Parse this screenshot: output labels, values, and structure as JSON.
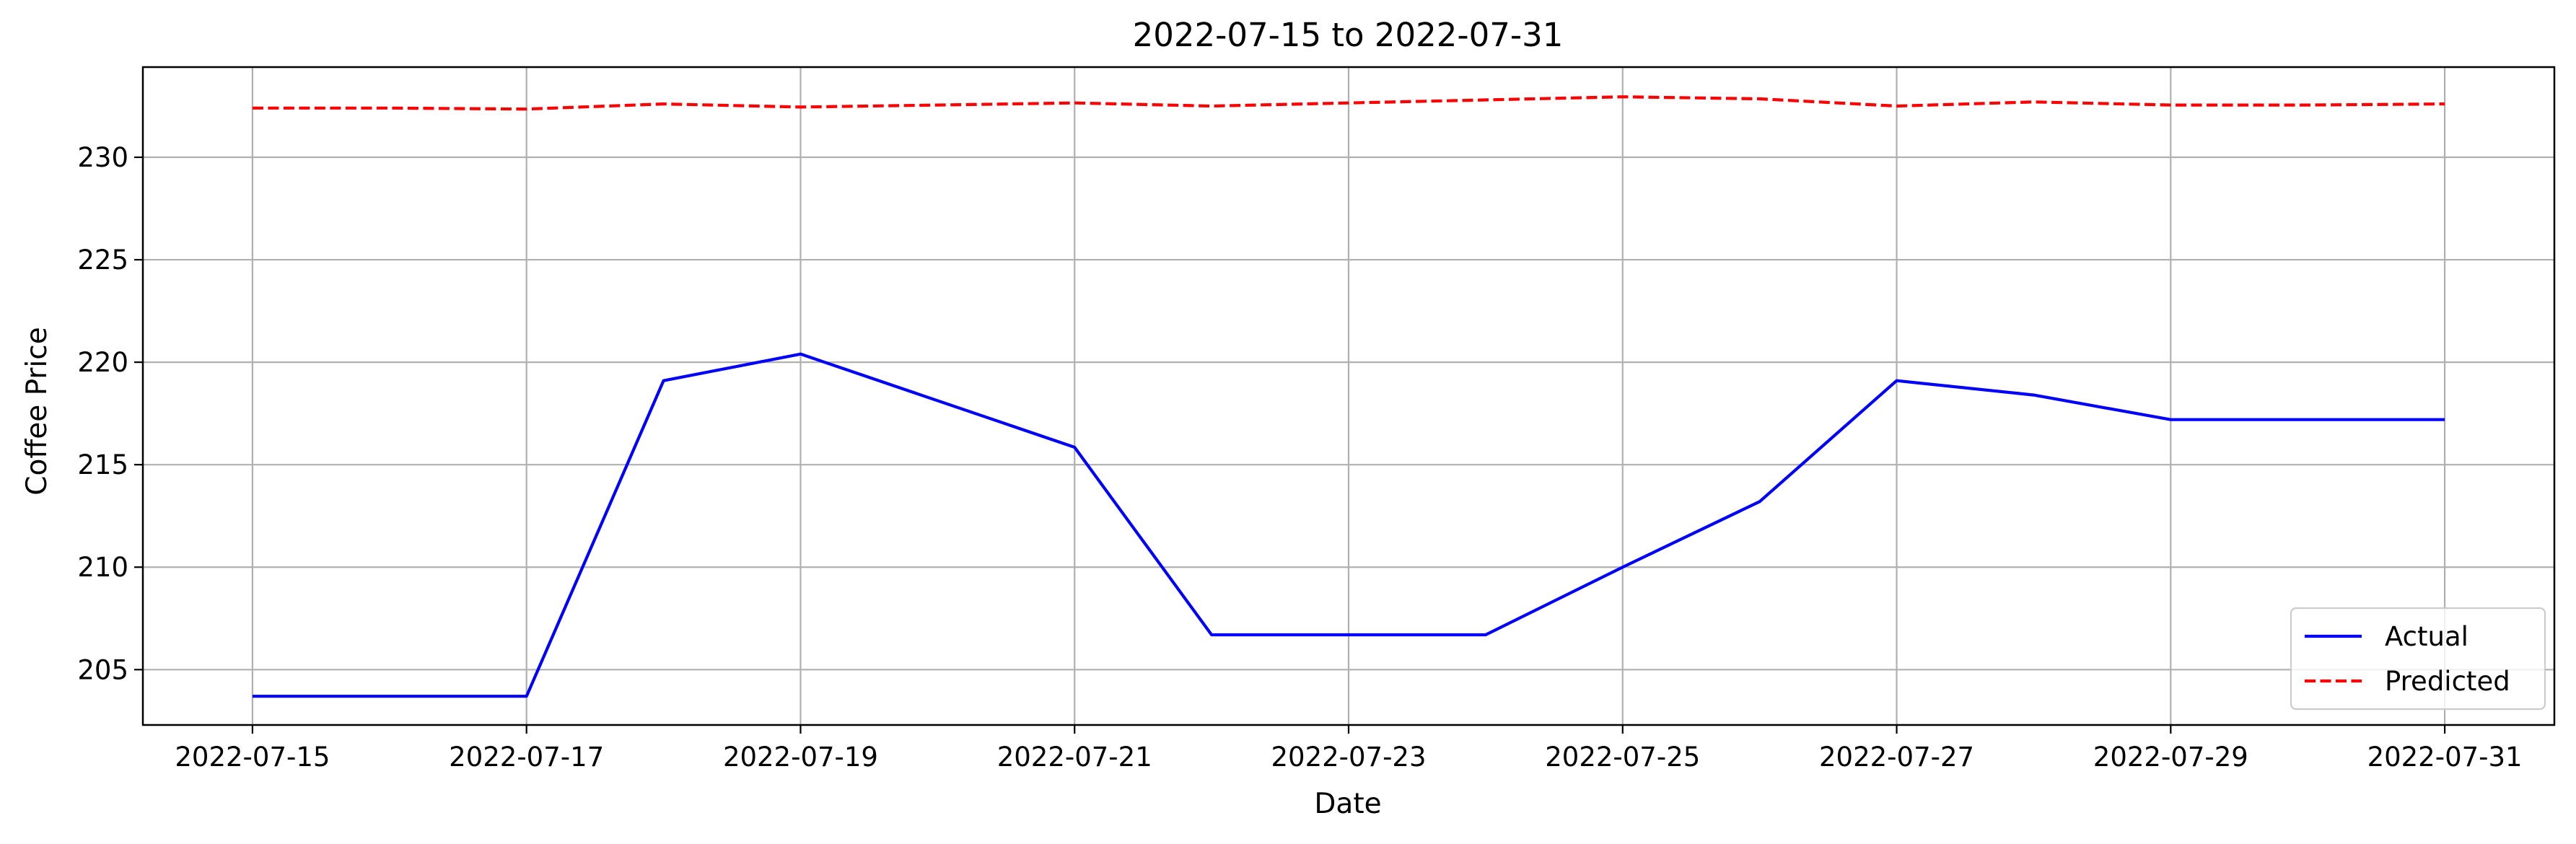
{
  "chart_data": {
    "type": "line",
    "title": "2022-07-15 to 2022-07-31",
    "xlabel": "Date",
    "ylabel": "Coffee Price",
    "x": [
      "2022-07-15",
      "2022-07-16",
      "2022-07-17",
      "2022-07-18",
      "2022-07-19",
      "2022-07-20",
      "2022-07-21",
      "2022-07-22",
      "2022-07-23",
      "2022-07-24",
      "2022-07-25",
      "2022-07-26",
      "2022-07-27",
      "2022-07-28",
      "2022-07-29",
      "2022-07-30",
      "2022-07-31"
    ],
    "x_ticks": [
      "2022-07-15",
      "2022-07-17",
      "2022-07-19",
      "2022-07-21",
      "2022-07-23",
      "2022-07-25",
      "2022-07-27",
      "2022-07-29",
      "2022-07-31"
    ],
    "y_ticks": [
      205,
      210,
      215,
      220,
      225,
      230
    ],
    "ylim": [
      202.3,
      234.4
    ],
    "grid": true,
    "legend_position": "bottom-right",
    "series": [
      {
        "name": "Actual",
        "color": "#0000ff",
        "style": "solid",
        "points": [
          {
            "x": "2022-07-15",
            "y": 203.7
          },
          {
            "x": "2022-07-17",
            "y": 203.7
          },
          {
            "x": "2022-07-18",
            "y": 219.1
          },
          {
            "x": "2022-07-19",
            "y": 220.4
          },
          {
            "x": "2022-07-21",
            "y": 215.85
          },
          {
            "x": "2022-07-22",
            "y": 206.7
          },
          {
            "x": "2022-07-24",
            "y": 206.7
          },
          {
            "x": "2022-07-25",
            "y": 210.0
          },
          {
            "x": "2022-07-26",
            "y": 213.2
          },
          {
            "x": "2022-07-27",
            "y": 219.1
          },
          {
            "x": "2022-07-28",
            "y": 218.4
          },
          {
            "x": "2022-07-29",
            "y": 217.2
          },
          {
            "x": "2022-07-31",
            "y": 217.2
          }
        ]
      },
      {
        "name": "Predicted",
        "color": "#ff0000",
        "style": "dashed",
        "points": [
          {
            "x": "2022-07-15",
            "y": 232.4
          },
          {
            "x": "2022-07-16",
            "y": 232.4
          },
          {
            "x": "2022-07-17",
            "y": 232.35
          },
          {
            "x": "2022-07-18",
            "y": 232.6
          },
          {
            "x": "2022-07-19",
            "y": 232.45
          },
          {
            "x": "2022-07-20",
            "y": 232.55
          },
          {
            "x": "2022-07-21",
            "y": 232.65
          },
          {
            "x": "2022-07-22",
            "y": 232.5
          },
          {
            "x": "2022-07-23",
            "y": 232.65
          },
          {
            "x": "2022-07-24",
            "y": 232.8
          },
          {
            "x": "2022-07-25",
            "y": 232.95
          },
          {
            "x": "2022-07-26",
            "y": 232.85
          },
          {
            "x": "2022-07-27",
            "y": 232.5
          },
          {
            "x": "2022-07-28",
            "y": 232.7
          },
          {
            "x": "2022-07-29",
            "y": 232.55
          },
          {
            "x": "2022-07-30",
            "y": 232.55
          },
          {
            "x": "2022-07-31",
            "y": 232.6
          }
        ]
      }
    ]
  }
}
